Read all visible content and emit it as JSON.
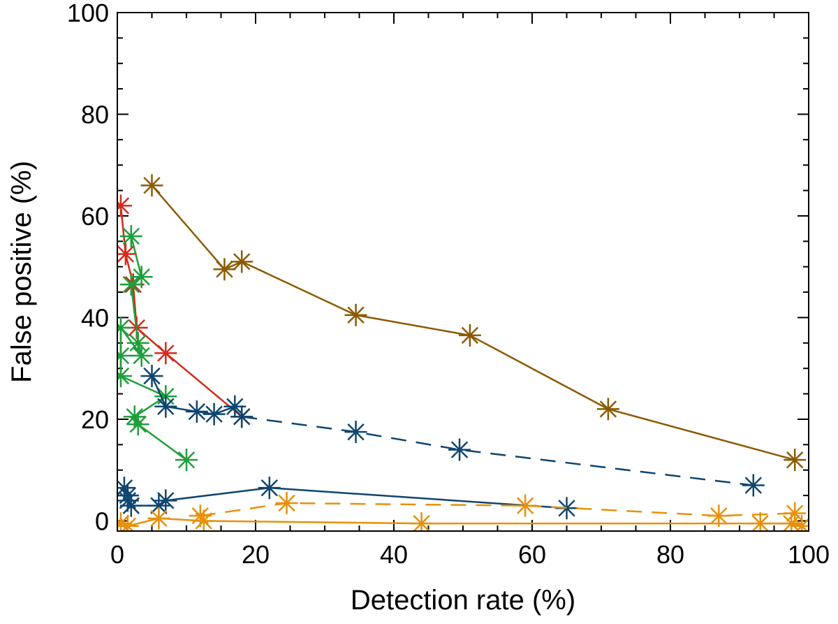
{
  "chart_data": {
    "type": "line",
    "xlabel": "Detection rate (%)",
    "ylabel": "False positive (%)",
    "xlim": [
      0,
      100
    ],
    "ylim": [
      -2,
      100
    ],
    "xticks": [
      0,
      20,
      40,
      60,
      80,
      100
    ],
    "yticks": [
      0,
      20,
      40,
      60,
      80,
      100
    ],
    "xtick_labels": [
      "0",
      "20",
      "40",
      "60",
      "80",
      "100"
    ],
    "ytick_labels": [
      "0",
      "20",
      "40",
      "60",
      "80",
      "100"
    ],
    "marker": "asterisk",
    "series": [
      {
        "name": "brown",
        "color": "#8B5A00",
        "dash": "solid",
        "x": [
          5,
          15.5,
          18,
          34.5,
          51,
          71,
          98
        ],
        "y": [
          66,
          49.5,
          51,
          40.5,
          36.5,
          22,
          12
        ]
      },
      {
        "name": "red",
        "color": "#D42A1A",
        "dash": "solid",
        "x": [
          0.5,
          1.2,
          2.3,
          2.8,
          7,
          18
        ],
        "y": [
          62,
          52.5,
          46.5,
          38,
          33,
          20.5
        ]
      },
      {
        "name": "green",
        "color": "#1E9E3A",
        "dash": "solid",
        "x": [
          2,
          3.5,
          2,
          3,
          3.5,
          0.5,
          0.5,
          0.5,
          7,
          2.5,
          3,
          10
        ],
        "y": [
          56,
          48,
          46.5,
          35,
          32.5,
          38,
          32.5,
          28.5,
          24.5,
          20.5,
          19,
          12
        ]
      },
      {
        "name": "blue-solid-upper",
        "color": "#0F4570",
        "dash": "solid",
        "x": [
          5,
          7,
          11.5,
          14,
          17
        ],
        "y": [
          28.5,
          22.5,
          21.5,
          21,
          22.5
        ]
      },
      {
        "name": "blue-dashed",
        "color": "#0F4570",
        "dash": "dashed",
        "x": [
          18,
          34.5,
          49.5,
          92
        ],
        "y": [
          20.5,
          17.5,
          14,
          7
        ]
      },
      {
        "name": "blue-solid-lower",
        "color": "#0F4570",
        "dash": "solid",
        "x": [
          1,
          1.5,
          1.5,
          2,
          6,
          7,
          22,
          65
        ],
        "y": [
          6.5,
          5,
          4,
          3,
          3,
          4,
          6.5,
          2.5
        ]
      },
      {
        "name": "orange-dashed",
        "color": "#E8900A",
        "dash": "dashed",
        "x": [
          12,
          24.5,
          59,
          87,
          98
        ],
        "y": [
          1,
          3.5,
          3,
          1,
          1.5
        ]
      },
      {
        "name": "orange-solid",
        "color": "#E8900A",
        "dash": "solid",
        "x": [
          0.5,
          1.5,
          6,
          12.5,
          44,
          93,
          97.5,
          99
        ],
        "y": [
          -0.5,
          -1,
          0.5,
          0,
          -0.5,
          -0.5,
          -0.5,
          -1
        ]
      }
    ]
  }
}
